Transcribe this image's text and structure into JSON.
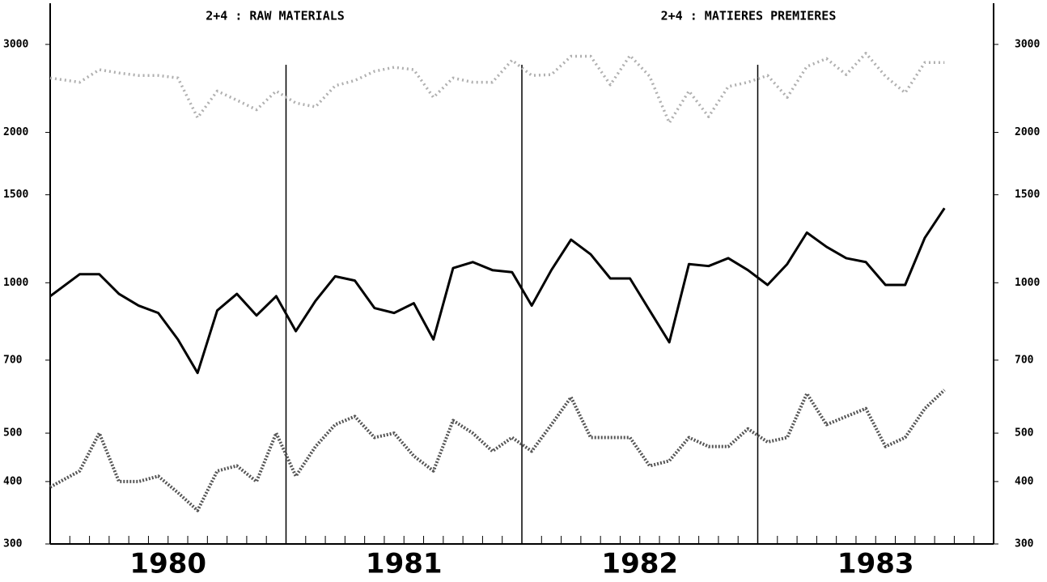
{
  "chart_data": {
    "type": "line",
    "title": "2+4 : RAW MATERIALS",
    "subtitle": "2+4 : MATIERES PREMIERES",
    "year_labels": [
      "1980",
      "1981",
      "1982",
      "1983"
    ],
    "x": [
      0,
      1.5,
      2.5,
      3.5,
      4.5,
      5.5,
      6.5,
      7.5,
      8.5,
      9.5,
      10.5,
      11.5,
      12.5,
      13.5,
      14.5,
      15.5,
      16.5,
      17.5,
      18.5,
      19.5,
      20.5,
      21.5,
      22.5,
      23.5,
      24.5,
      25.5,
      26.5,
      27.5,
      28.5,
      29.5,
      30.5,
      31.5,
      32.5,
      33.5,
      34.5,
      35.5,
      36.5,
      37.5,
      38.5,
      39.5,
      40.5,
      41.5,
      42.5,
      43.5,
      44.5,
      45.5
    ],
    "xlim": [
      0,
      48
    ],
    "series": [
      {
        "color": "#b0b0b0",
        "style": "dotted",
        "values": [
          2570,
          2520,
          2670,
          2630,
          2600,
          2600,
          2570,
          2140,
          2420,
          2320,
          2220,
          2420,
          2290,
          2250,
          2480,
          2540,
          2650,
          2700,
          2670,
          2350,
          2570,
          2520,
          2520,
          2790,
          2600,
          2610,
          2840,
          2840,
          2490,
          2850,
          2590,
          2090,
          2420,
          2150,
          2470,
          2520,
          2600,
          2350,
          2710,
          2810,
          2610,
          2880,
          2590,
          2400,
          2760,
          2760
        ]
      },
      {
        "color": "#000000",
        "style": "solid",
        "values": [
          940,
          1040,
          1040,
          950,
          900,
          870,
          770,
          660,
          880,
          950,
          860,
          940,
          800,
          920,
          1030,
          1010,
          890,
          870,
          910,
          770,
          1070,
          1100,
          1060,
          1050,
          900,
          1060,
          1220,
          1140,
          1020,
          1020,
          880,
          760,
          1090,
          1080,
          1120,
          1060,
          990,
          1090,
          1260,
          1180,
          1120,
          1100,
          990,
          990,
          1230,
          1410
        ]
      },
      {
        "color": "#555555",
        "style": "dashed",
        "values": [
          390,
          420,
          500,
          400,
          400,
          410,
          380,
          350,
          420,
          430,
          400,
          500,
          410,
          470,
          520,
          540,
          490,
          500,
          450,
          420,
          530,
          500,
          460,
          490,
          460,
          520,
          590,
          490,
          490,
          490,
          430,
          440,
          490,
          470,
          470,
          510,
          480,
          490,
          600,
          520,
          540,
          560,
          470,
          490,
          560,
          610
        ]
      }
    ],
    "ylim": [
      300,
      3600
    ],
    "yticks": [
      300,
      400,
      500,
      700,
      1000,
      1500,
      2000,
      3000
    ],
    "log_scale": true
  }
}
